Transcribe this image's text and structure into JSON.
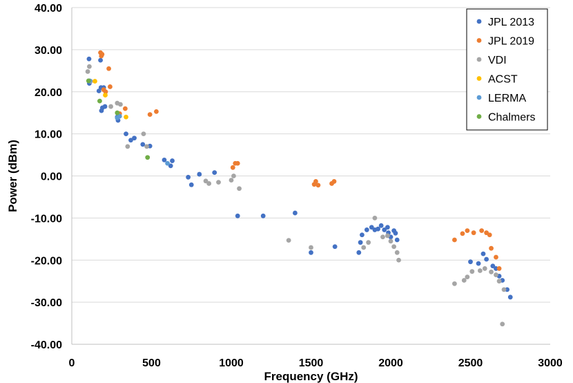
{
  "chart_data": {
    "type": "scatter",
    "title": "",
    "xlabel": "Frequency (GHz)",
    "ylabel": "Power (dBm)",
    "xlim": [
      0,
      3000
    ],
    "ylim": [
      -40,
      40
    ],
    "x_ticks": [
      0,
      500,
      1000,
      1500,
      2000,
      2500,
      3000
    ],
    "y_ticks": [
      40,
      30,
      20,
      10,
      0,
      -10,
      -20,
      -30,
      -40
    ],
    "x_tick_labels": [
      "0",
      "500",
      "1000",
      "1500",
      "2000",
      "2500",
      "3000"
    ],
    "y_tick_labels": [
      "40.00",
      "30.00",
      "20.00",
      "10.00",
      "0.00",
      "-10.00",
      "-20.00",
      "-30.00",
      "-40.00"
    ],
    "grid": "horizontal",
    "legend_position": "top-right",
    "series": [
      {
        "name": "JPL 2013",
        "color": "#4472C4",
        "points": [
          [
            108,
            27.8
          ],
          [
            110,
            22.0
          ],
          [
            170,
            20.2
          ],
          [
            180,
            27.5
          ],
          [
            183,
            21.0
          ],
          [
            186,
            15.5
          ],
          [
            192,
            16.2
          ],
          [
            200,
            21.0
          ],
          [
            208,
            16.5
          ],
          [
            285,
            14.0
          ],
          [
            290,
            13.2
          ],
          [
            340,
            10.0
          ],
          [
            370,
            8.5
          ],
          [
            392,
            9.0
          ],
          [
            445,
            7.5
          ],
          [
            490,
            7.1
          ],
          [
            580,
            3.8
          ],
          [
            620,
            2.4
          ],
          [
            630,
            3.6
          ],
          [
            730,
            -0.3
          ],
          [
            750,
            -2.1
          ],
          [
            800,
            0.4
          ],
          [
            895,
            0.8
          ],
          [
            1040,
            -9.5
          ],
          [
            1200,
            -9.5
          ],
          [
            1400,
            -8.8
          ],
          [
            1500,
            -18.2
          ],
          [
            1650,
            -16.8
          ],
          [
            1800,
            -18.2
          ],
          [
            1810,
            -15.8
          ],
          [
            1820,
            -14.0
          ],
          [
            1850,
            -12.8
          ],
          [
            1880,
            -12.2
          ],
          [
            1900,
            -12.8
          ],
          [
            1920,
            -12.6
          ],
          [
            1940,
            -11.8
          ],
          [
            1960,
            -12.8
          ],
          [
            1980,
            -12.2
          ],
          [
            1985,
            -13.5
          ],
          [
            2000,
            -14.5
          ],
          [
            2020,
            -13.0
          ],
          [
            2030,
            -13.6
          ],
          [
            2040,
            -15.2
          ],
          [
            2500,
            -20.4
          ],
          [
            2550,
            -20.8
          ],
          [
            2580,
            -18.5
          ],
          [
            2600,
            -19.8
          ],
          [
            2640,
            -21.4
          ],
          [
            2660,
            -22.0
          ],
          [
            2680,
            -23.8
          ],
          [
            2700,
            -24.8
          ],
          [
            2730,
            -27.0
          ],
          [
            2750,
            -28.8
          ]
        ]
      },
      {
        "name": "JPL 2019",
        "color": "#ED7D31",
        "points": [
          [
            180,
            29.3
          ],
          [
            185,
            28.5
          ],
          [
            190,
            28.9
          ],
          [
            200,
            20.5
          ],
          [
            212,
            20.0
          ],
          [
            232,
            25.5
          ],
          [
            240,
            21.2
          ],
          [
            300,
            14.8
          ],
          [
            335,
            16.0
          ],
          [
            490,
            14.6
          ],
          [
            530,
            15.3
          ],
          [
            1010,
            2.0
          ],
          [
            1025,
            3.0
          ],
          [
            1040,
            3.0
          ],
          [
            1520,
            -2.0
          ],
          [
            1530,
            -1.3
          ],
          [
            1545,
            -2.2
          ],
          [
            1630,
            -1.8
          ],
          [
            1645,
            -1.3
          ],
          [
            2400,
            -15.2
          ],
          [
            2450,
            -13.7
          ],
          [
            2480,
            -13.0
          ],
          [
            2520,
            -13.5
          ],
          [
            2570,
            -13.0
          ],
          [
            2600,
            -13.5
          ],
          [
            2620,
            -14.0
          ],
          [
            2630,
            -17.2
          ],
          [
            2660,
            -19.3
          ],
          [
            2680,
            -22.0
          ]
        ]
      },
      {
        "name": "VDI",
        "color": "#A5A5A5",
        "points": [
          [
            100,
            24.8
          ],
          [
            110,
            26.0
          ],
          [
            118,
            22.5
          ],
          [
            245,
            16.5
          ],
          [
            285,
            17.3
          ],
          [
            305,
            17.0
          ],
          [
            350,
            7.0
          ],
          [
            450,
            10.0
          ],
          [
            470,
            7.0
          ],
          [
            840,
            -1.2
          ],
          [
            860,
            -1.8
          ],
          [
            920,
            -1.5
          ],
          [
            1000,
            -1.0
          ],
          [
            1015,
            0.0
          ],
          [
            1050,
            -3.0
          ],
          [
            1360,
            -15.3
          ],
          [
            1500,
            -17.0
          ],
          [
            1830,
            -17.0
          ],
          [
            1860,
            -15.8
          ],
          [
            1900,
            -10.0
          ],
          [
            1950,
            -14.5
          ],
          [
            1980,
            -14.2
          ],
          [
            2000,
            -15.5
          ],
          [
            2020,
            -16.8
          ],
          [
            2040,
            -18.2
          ],
          [
            2050,
            -20.0
          ],
          [
            2400,
            -25.6
          ],
          [
            2460,
            -24.8
          ],
          [
            2480,
            -24.0
          ],
          [
            2510,
            -22.7
          ],
          [
            2560,
            -22.5
          ],
          [
            2590,
            -22.0
          ],
          [
            2630,
            -22.8
          ],
          [
            2660,
            -23.5
          ],
          [
            2680,
            -25.0
          ],
          [
            2700,
            -35.2
          ],
          [
            2710,
            -27.0
          ]
        ]
      },
      {
        "name": "ACST",
        "color": "#FFC000",
        "points": [
          [
            145,
            22.5
          ],
          [
            210,
            19.2
          ],
          [
            340,
            14.0
          ]
        ]
      },
      {
        "name": "LERMA",
        "color": "#5B9BD5",
        "points": [
          [
            112,
            22.6
          ],
          [
            285,
            13.8
          ],
          [
            300,
            14.2
          ],
          [
            600,
            3.0
          ]
        ]
      },
      {
        "name": "Chalmers",
        "color": "#70AD47",
        "points": [
          [
            105,
            22.6
          ],
          [
            175,
            17.8
          ],
          [
            285,
            15.0
          ],
          [
            475,
            4.4
          ]
        ]
      }
    ]
  }
}
